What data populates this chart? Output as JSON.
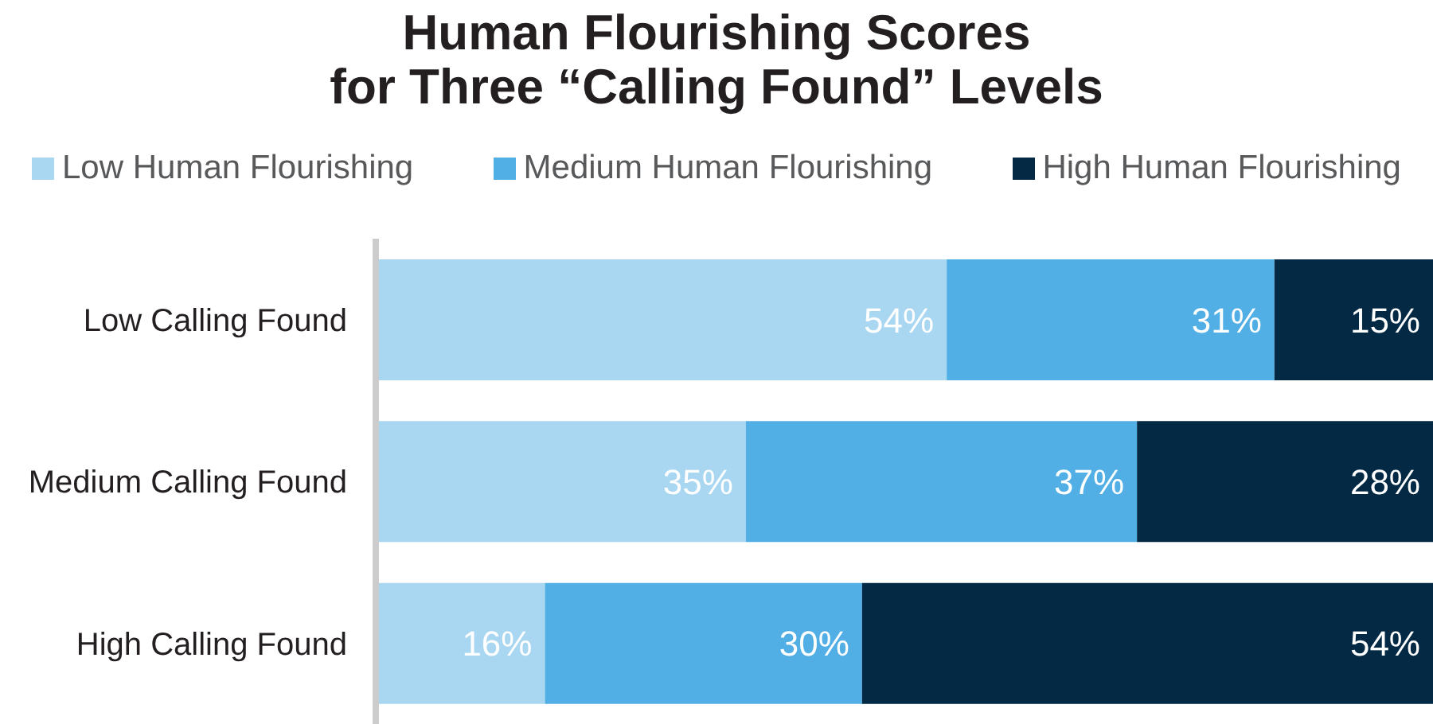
{
  "chart_data": {
    "type": "bar",
    "orientation": "horizontal",
    "stacked": true,
    "title": "Human Flourishing Scores\nfor Three “Calling Found” Levels",
    "categories": [
      "Low Calling Found",
      "Medium Calling Found",
      "High Calling Found"
    ],
    "series": [
      {
        "name": "Low Human Flourishing",
        "color": "#a9d7f1",
        "values": [
          54,
          35,
          16
        ],
        "value_labels": [
          "54%",
          "35%",
          "16%"
        ]
      },
      {
        "name": "Medium Human Flourishing",
        "color": "#52afe5",
        "values": [
          31,
          37,
          30
        ],
        "value_labels": [
          "31%",
          "37%",
          "30%"
        ]
      },
      {
        "name": "High Human Flourishing",
        "color": "#032944",
        "values": [
          15,
          28,
          54
        ],
        "value_labels": [
          "15%",
          "28%",
          "54%"
        ]
      }
    ],
    "xlim": [
      0,
      100
    ],
    "legend": "top",
    "tick_labels": "y"
  }
}
